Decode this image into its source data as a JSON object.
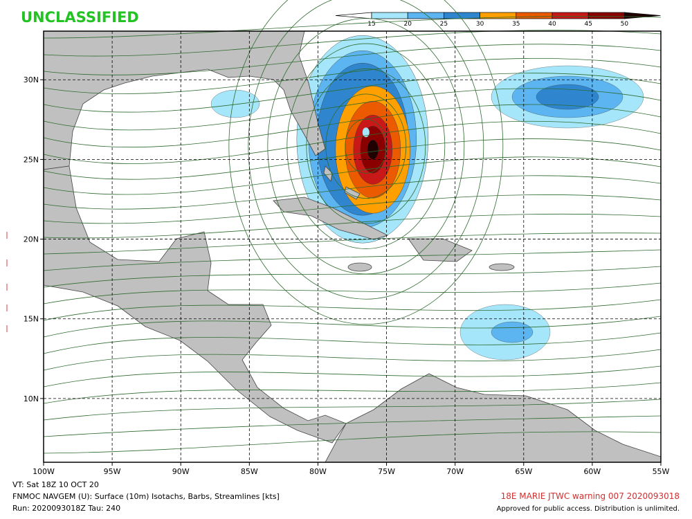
{
  "header": {
    "classification": "UNCLASSIFIED"
  },
  "colorbar": {
    "levels": [
      15,
      20,
      25,
      30,
      35,
      40,
      45,
      50
    ],
    "colors": [
      "#ffffff",
      "#a6e6fa",
      "#5cb5f0",
      "#2f86cf",
      "#ff9f00",
      "#ec5a00",
      "#c81818",
      "#8a0000",
      "#200000"
    ]
  },
  "map": {
    "xlim": [
      -100,
      -55
    ],
    "ylim": [
      6,
      33.05
    ],
    "lon_ticks": [
      {
        "value": -100,
        "label": "100W"
      },
      {
        "value": -95,
        "label": "95W"
      },
      {
        "value": -90,
        "label": "90W"
      },
      {
        "value": -85,
        "label": "85W"
      },
      {
        "value": -80,
        "label": "80W"
      },
      {
        "value": -75,
        "label": "75W"
      },
      {
        "value": -70,
        "label": "70W"
      },
      {
        "value": -65,
        "label": "65W"
      },
      {
        "value": -60,
        "label": "60W"
      },
      {
        "value": -55,
        "label": "55W"
      }
    ],
    "lat_ticks": [
      {
        "value": 10,
        "label": "10N"
      },
      {
        "value": 15,
        "label": "15N"
      },
      {
        "value": 20,
        "label": "20N"
      },
      {
        "value": 25,
        "label": "25N"
      },
      {
        "value": 30,
        "label": "30N"
      }
    ]
  },
  "footer": {
    "valid_time": "VT: Sat 18Z 10 OCT 20",
    "product": "FNMOC NAVGEM (U): Surface (10m) Isotachs, Barbs, Streamlines [kts]",
    "run": "Run: 2020093018Z Tau: 240",
    "storm": "18E MARIE JTWC warning 007 2020093018",
    "distribution": "Approved for public access. Distribution is unlimited."
  }
}
